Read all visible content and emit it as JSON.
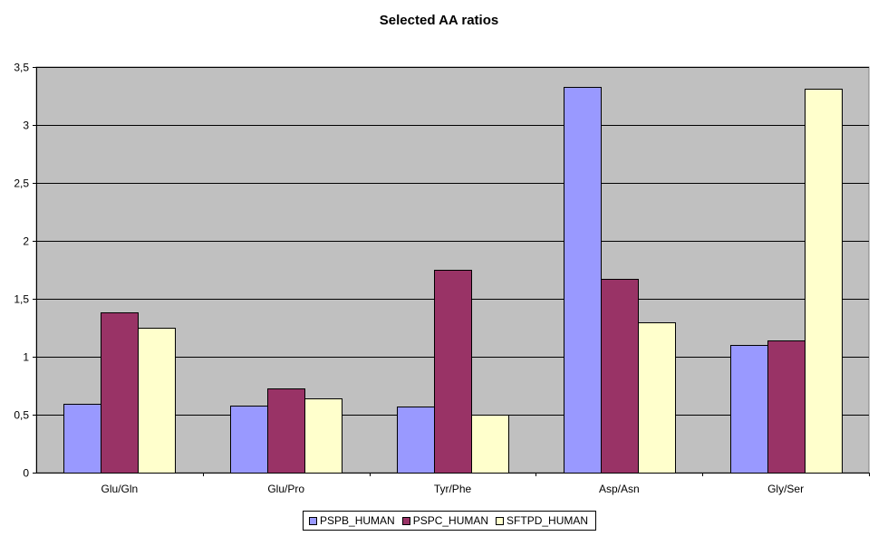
{
  "chart_data": {
    "type": "bar",
    "title": "Selected AA ratios",
    "xlabel": "",
    "ylabel": "",
    "categories": [
      "Glu/Gln",
      "Glu/Pro",
      "Tyr/Phe",
      "Asp/Asn",
      "Gly/Ser"
    ],
    "series": [
      {
        "name": "PSPB_HUMAN",
        "color": "#9999ff",
        "values": [
          0.59,
          0.58,
          0.57,
          3.33,
          1.1
        ]
      },
      {
        "name": "PSPC_HUMAN",
        "color": "#993366",
        "values": [
          1.38,
          0.73,
          1.75,
          1.67,
          1.14
        ]
      },
      {
        "name": "SFTPD_HUMAN",
        "color": "#ffffcc",
        "values": [
          1.25,
          0.64,
          0.5,
          1.3,
          3.31
        ]
      }
    ],
    "ylim": [
      0,
      3.5
    ],
    "yticks": [
      "0",
      "0,5",
      "1",
      "1,5",
      "2",
      "2,5",
      "3",
      "3,5"
    ],
    "grid": true,
    "plot_background": "#c0c0c0",
    "legend_position": "bottom"
  }
}
